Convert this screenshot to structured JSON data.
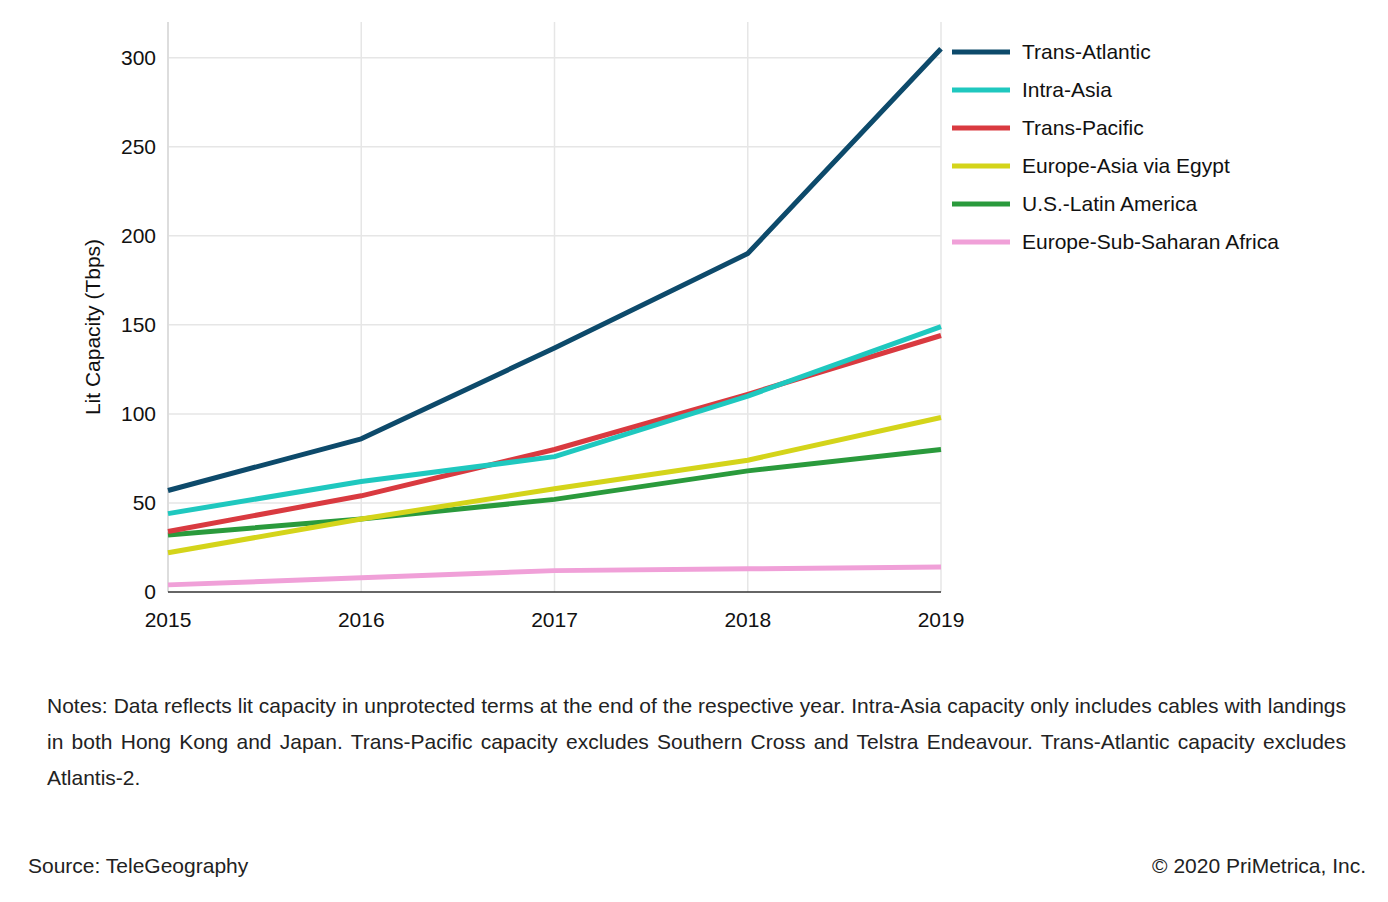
{
  "chart_data": {
    "type": "line",
    "y_label": "Lit Capacity (Tbps)",
    "notes": "Notes: Data reflects lit capacity in unprotected terms at the end of the respective year. Intra-Asia capacity only includes cables with landings in both Hong Kong and Japan. Trans-Pacific capacity excludes Southern Cross and Telstra Endeavour. Trans-Atlantic capacity excludes Atlantis-2.",
    "source": "Source: TeleGeography",
    "credit": "© 2020 PriMetrica, Inc.",
    "x": [
      2015,
      2016,
      2017,
      2018,
      2019
    ],
    "xlim": [
      2015,
      2019
    ],
    "xticks": [
      2015,
      2016,
      2017,
      2018,
      2019
    ],
    "ylim": [
      0,
      320
    ],
    "yticks": [
      0,
      50,
      100,
      150,
      200,
      250,
      300
    ],
    "grid": true,
    "legend": "right",
    "series": [
      {
        "name": "Trans-Atlantic",
        "color": "#0d4a6b",
        "values": [
          57,
          86,
          137,
          190,
          305
        ]
      },
      {
        "name": "Intra-Asia",
        "color": "#1fc8bf",
        "values": [
          44,
          62,
          76,
          110,
          149
        ]
      },
      {
        "name": "Trans-Pacific",
        "color": "#d93a40",
        "values": [
          34,
          54,
          80,
          111,
          144
        ]
      },
      {
        "name": "Europe-Asia via Egypt",
        "color": "#d4d41a",
        "values": [
          22,
          41,
          58,
          74,
          98
        ]
      },
      {
        "name": "U.S.-Latin America",
        "color": "#2a9a3c",
        "values": [
          32,
          41,
          52,
          68,
          80
        ]
      },
      {
        "name": "Europe-Sub-Saharan Africa",
        "color": "#f0a0d8",
        "values": [
          4,
          8,
          12,
          13,
          14
        ]
      }
    ]
  }
}
